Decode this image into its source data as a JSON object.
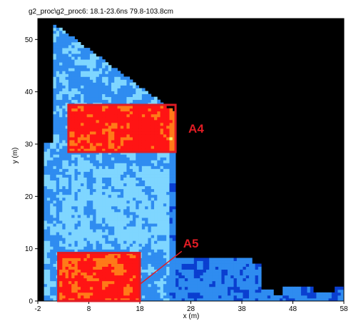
{
  "header": {
    "title": "g2_proc\\g2_proc6:  18.1-23.6ns  79.8-103.8cm"
  },
  "colors": {
    "plot_background": "#000000",
    "annotation": "#e01c24",
    "colormap": [
      "#0a3fd0",
      "#2f8cf0",
      "#7fd6ff",
      "#f4ff6a",
      "#ff7a18",
      "#ff1414"
    ]
  },
  "chart_data": {
    "type": "heatmap",
    "title": "",
    "xlabel": "x (m)",
    "ylabel": "y (m)",
    "xlim": [
      -2,
      58
    ],
    "ylim": [
      0,
      54
    ],
    "x_ticks": [
      "-2",
      "8",
      "18",
      "28",
      "38",
      "48",
      "58"
    ],
    "y_ticks": [
      "0",
      "10",
      "20",
      "30",
      "40",
      "50"
    ],
    "grid": false,
    "annotations": [
      {
        "label": "A4",
        "x_range": [
          4,
          25
        ],
        "y_range": [
          28.5,
          37.5
        ]
      },
      {
        "label": "A5",
        "x_range": [
          2,
          18
        ],
        "y_range": [
          0,
          9.2
        ]
      }
    ]
  }
}
